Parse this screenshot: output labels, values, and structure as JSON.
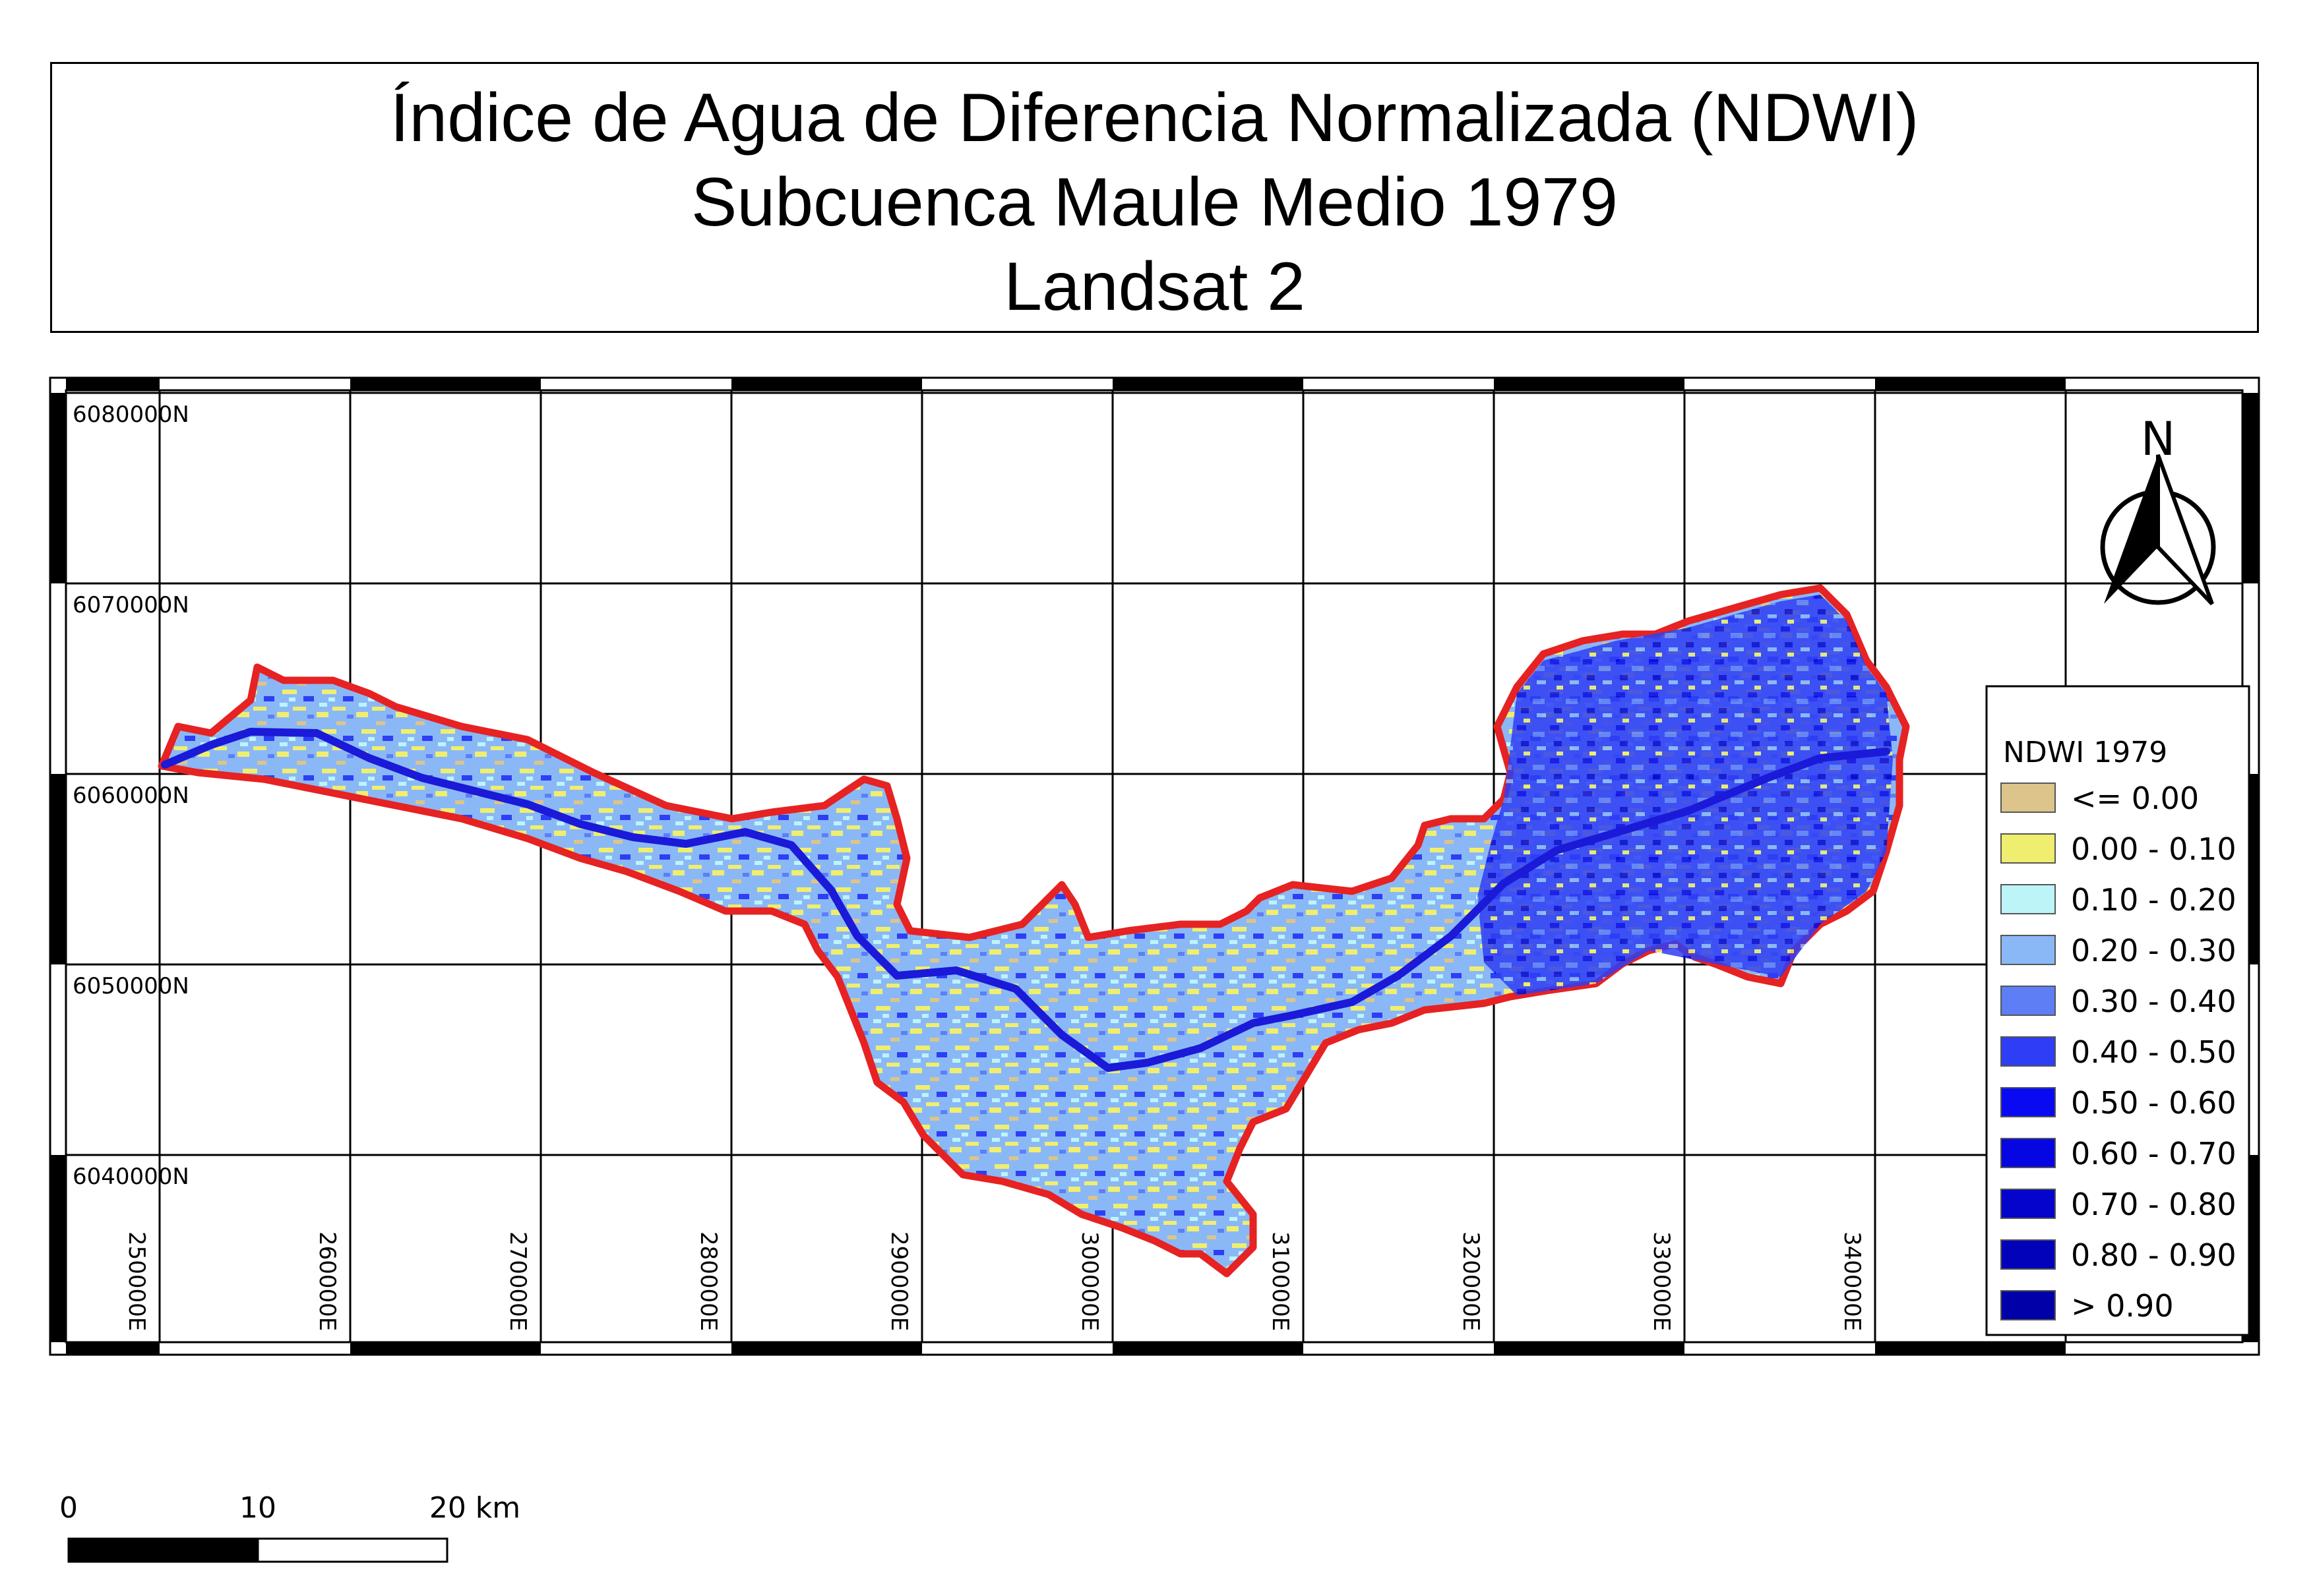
{
  "title": {
    "line1": "Índice de Agua de Diferencia Normalizada (NDWI)",
    "line2": "Subcuenca Maule Medio 1979",
    "line3": "Landsat 2"
  },
  "grid": {
    "northing_labels": [
      "6080000N",
      "6070000N",
      "6060000N",
      "6050000N",
      "6040000N"
    ],
    "easting_labels": [
      "250000E",
      "260000E",
      "270000E",
      "280000E",
      "290000E",
      "300000E",
      "310000E",
      "320000E",
      "330000E",
      "340000E"
    ]
  },
  "north_arrow": {
    "label": "N"
  },
  "legend": {
    "title": "NDWI 1979",
    "items": [
      {
        "label": "<= 0.00",
        "color": "#dcc48a"
      },
      {
        "label": "0.00 - 0.10",
        "color": "#f0ee6e"
      },
      {
        "label": "0.10 - 0.20",
        "color": "#bdf4f8"
      },
      {
        "label": "0.20 - 0.30",
        "color": "#8ab8f6"
      },
      {
        "label": "0.30 - 0.40",
        "color": "#5e7ef6"
      },
      {
        "label": "0.40 - 0.50",
        "color": "#2e3ef4"
      },
      {
        "label": "0.50 - 0.60",
        "color": "#0a0af2"
      },
      {
        "label": "0.60 - 0.70",
        "color": "#0606e2"
      },
      {
        "label": "0.70 - 0.80",
        "color": "#0404cc"
      },
      {
        "label": "0.80 - 0.90",
        "color": "#0202bb"
      },
      {
        "label": "> 0.90",
        "color": "#0000a8"
      }
    ]
  },
  "scale_bar": {
    "labels": [
      "0",
      "10",
      "20 km"
    ]
  },
  "colors": {
    "boundary": "#e62222",
    "river": "#1a1ad8"
  }
}
